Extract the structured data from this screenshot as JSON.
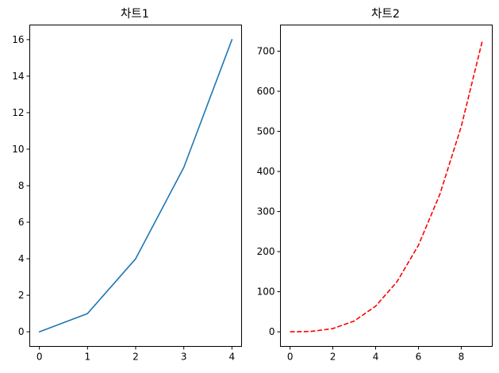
{
  "chart_data": [
    {
      "type": "line",
      "title": "차트1",
      "xlabel": "",
      "ylabel": "",
      "x": [
        0,
        1,
        2,
        3,
        4
      ],
      "series": [
        {
          "values": [
            0,
            1,
            4,
            9,
            16
          ],
          "color": "#1f77b4",
          "line_style": "solid"
        }
      ],
      "xlim": [
        -0.2,
        4.2
      ],
      "ylim": [
        -0.8,
        16.8
      ],
      "x_ticks": [
        0,
        1,
        2,
        3,
        4
      ],
      "x_tick_labels": [
        "0",
        "1",
        "2",
        "3",
        "4"
      ],
      "y_ticks": [
        0,
        2,
        4,
        6,
        8,
        10,
        12,
        14,
        16
      ],
      "y_tick_labels": [
        "0",
        "2",
        "4",
        "6",
        "8",
        "10",
        "12",
        "14",
        "16"
      ],
      "grid": false,
      "legend": "none"
    },
    {
      "type": "line",
      "title": "차트2",
      "xlabel": "",
      "ylabel": "",
      "x": [
        0,
        1,
        2,
        3,
        4,
        5,
        6,
        7,
        8,
        9
      ],
      "series": [
        {
          "values": [
            0,
            1,
            8,
            27,
            64,
            125,
            216,
            343,
            512,
            729
          ],
          "color": "#ff0000",
          "line_style": "dashed"
        }
      ],
      "xlim": [
        -0.45,
        9.45
      ],
      "ylim": [
        -36.45,
        765.45
      ],
      "x_ticks": [
        0,
        2,
        4,
        6,
        8
      ],
      "x_tick_labels": [
        "0",
        "2",
        "4",
        "6",
        "8"
      ],
      "y_ticks": [
        0,
        100,
        200,
        300,
        400,
        500,
        600,
        700
      ],
      "y_tick_labels": [
        "0",
        "100",
        "200",
        "300",
        "400",
        "500",
        "600",
        "700"
      ],
      "grid": false,
      "legend": "none"
    }
  ]
}
